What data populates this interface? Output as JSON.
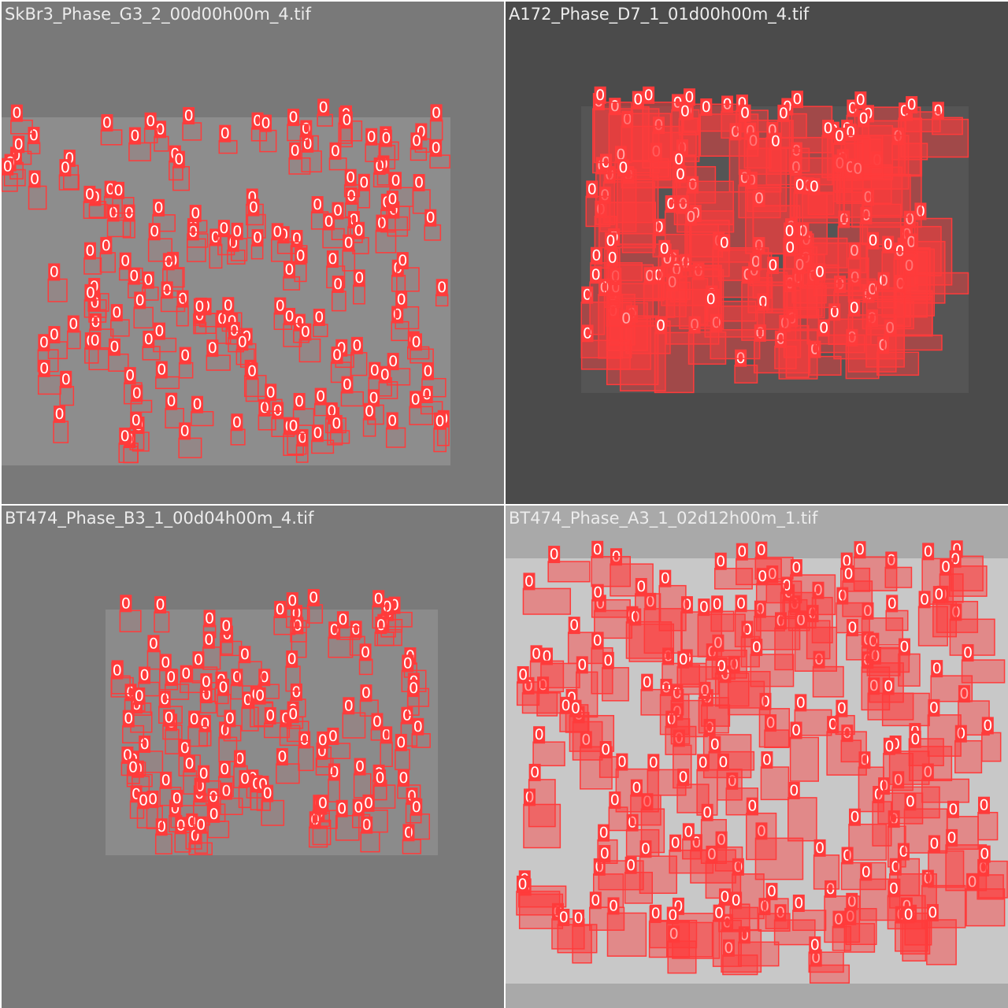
{
  "panels": [
    {
      "title": "SkBr3_Phase_G3_2_00d00h00m_4.tif",
      "label": "0",
      "colors": {
        "outer": "#797979",
        "image": "#8d8d8d",
        "detection": "#ff3b3b"
      }
    },
    {
      "title": "A172_Phase_D7_1_01d00h00m_4.tif",
      "label": "0",
      "colors": {
        "outer": "#4b4b4b",
        "image": "#555555",
        "detection": "#ff3b3b"
      }
    },
    {
      "title": "BT474_Phase_B3_1_00d04h00m_4.tif",
      "label": "0",
      "colors": {
        "outer": "#7a7a7a",
        "image": "#8b8b8b",
        "detection": "#ff3b3b"
      }
    },
    {
      "title": "BT474_Phase_A3_1_02d12h00m_1.tif",
      "label": "0",
      "colors": {
        "outer": "#a9a9a9",
        "image": "#c8c8c8",
        "detection": "#ff3b3b"
      }
    }
  ]
}
